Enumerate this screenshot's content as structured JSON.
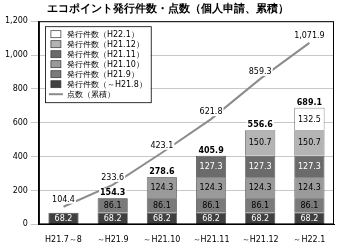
{
  "chart_data": {
    "type": "bar",
    "title": "エコポイント発行件数・点数（個人申請、累積）",
    "categories": [
      "H21.7～8",
      "～H21.9",
      "～H21.10",
      "～H21.11",
      "～H21.12",
      "～H22.1"
    ],
    "stacked": true,
    "data_labels": true,
    "grid": true,
    "legend": "top-left",
    "ylim": [
      0,
      1200
    ],
    "yticks": [
      0,
      200,
      400,
      600,
      800,
      {
        "value": 1000,
        "label": "1,000"
      },
      {
        "value": 1200,
        "label": "1,200"
      }
    ],
    "series": [
      {
        "name": "発行件数（～H21.8）",
        "color": "#404040",
        "values": [
          68.2,
          68.2,
          68.2,
          68.2,
          68.2,
          68.2
        ]
      },
      {
        "name": "発行件数（H21.9）",
        "color": "#7a7a7a",
        "values": [
          null,
          86.1,
          86.1,
          86.1,
          86.1,
          86.1
        ]
      },
      {
        "name": "発行件数（H21.10）",
        "color": "#9a9a9a",
        "values": [
          null,
          null,
          124.3,
          124.3,
          124.3,
          124.3
        ]
      },
      {
        "name": "発行件数（H21.11）",
        "color": "#6b6b6b",
        "values": [
          null,
          null,
          null,
          127.3,
          127.3,
          127.3
        ]
      },
      {
        "name": "発行件数（H21.12）",
        "color": "#b4b4b4",
        "values": [
          null,
          null,
          null,
          null,
          150.7,
          150.7
        ]
      },
      {
        "name": "発行件数（H22.1）",
        "color": "#ffffff",
        "values": [
          null,
          null,
          null,
          null,
          null,
          132.5
        ]
      },
      {
        "name": "点数（累積）",
        "type": "line",
        "color": "#8c8c8c",
        "marker": "none",
        "values": [
          104.4,
          233.6,
          423.1,
          621.8,
          859.3,
          1071.9
        ],
        "value_labels": [
          "104.4",
          "233.6",
          "423.1",
          "621.8",
          "859.3",
          "1,071.9"
        ]
      }
    ],
    "totals": [
      null,
      154.3,
      278.6,
      405.9,
      556.6,
      689.1
    ]
  }
}
